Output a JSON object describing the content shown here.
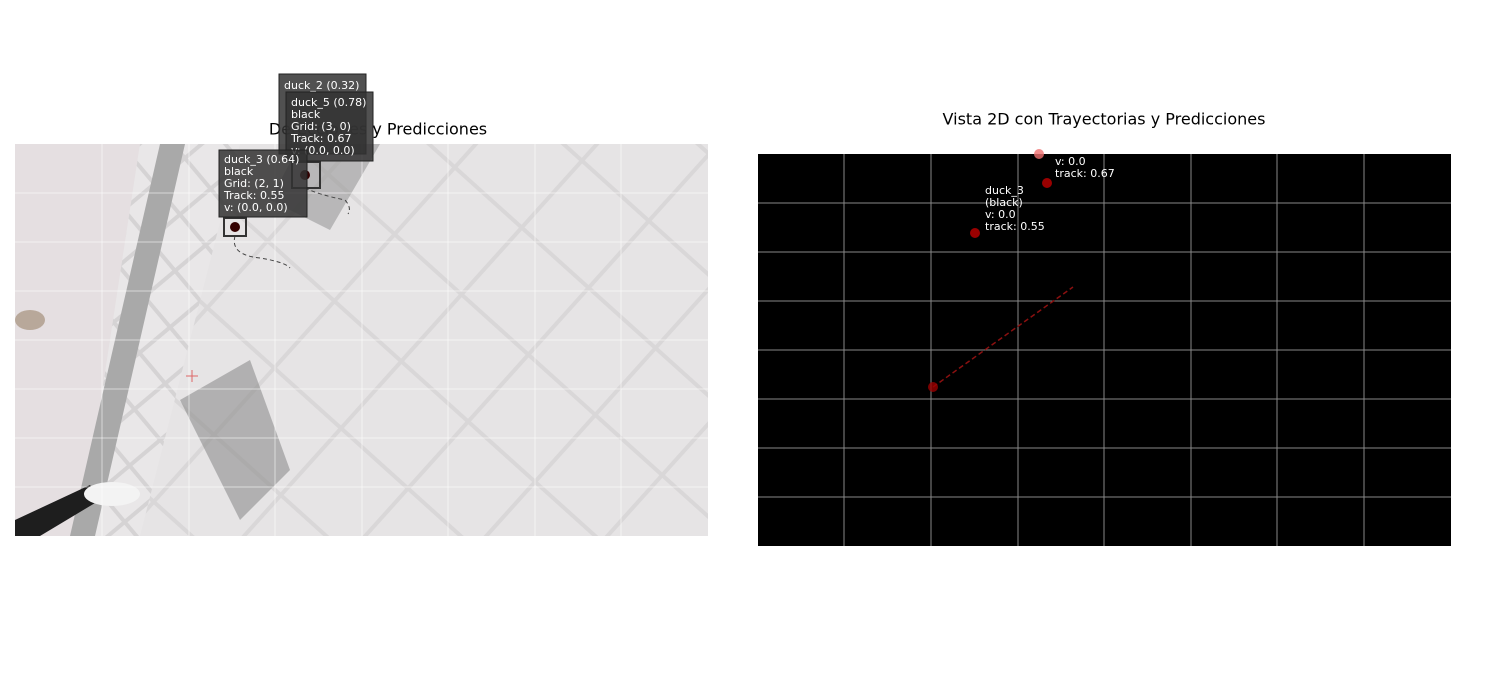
{
  "left_panel": {
    "title": "Detecciones y Predicciones",
    "annotations": [
      {
        "lines": [
          "duck_2 (0.32)"
        ]
      },
      {
        "lines": [
          "duck_5 (0.78)",
          "black",
          "Grid: (3, 0)",
          "Track: 0.67",
          "v: (0.0, 0.0)"
        ]
      },
      {
        "lines": [
          "duck_3 (0.64)",
          "black",
          "Grid: (2, 1)",
          "Track: 0.55",
          "v: (0.0, 0.0)"
        ]
      }
    ]
  },
  "right_panel": {
    "title": "Vista 2D con Trayectorias y Predicciones",
    "annotations": [
      {
        "lines": [
          "v: 0.0",
          "track: 0.67"
        ]
      },
      {
        "lines": [
          "duck_3",
          "(black)",
          "v: 0.0",
          "track: 0.55"
        ]
      }
    ]
  }
}
